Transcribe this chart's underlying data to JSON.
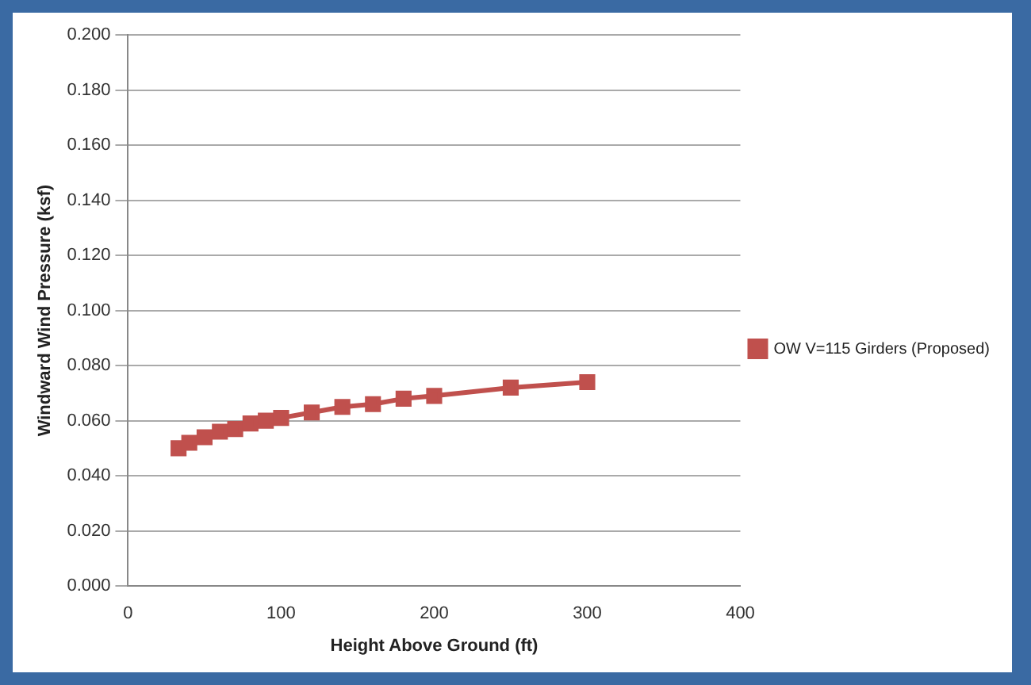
{
  "chart_data": {
    "type": "line",
    "xlabel": "Height Above Ground (ft)",
    "ylabel": "Windward Wind Pressure (ksf)",
    "x": [
      33,
      40,
      50,
      60,
      70,
      80,
      90,
      100,
      120,
      140,
      160,
      180,
      200,
      250,
      300
    ],
    "series": [
      {
        "name": "OW V=115 Girders (Proposed)",
        "color": "#c0504d",
        "values": [
          0.05,
          0.052,
          0.054,
          0.056,
          0.057,
          0.059,
          0.06,
          0.061,
          0.063,
          0.065,
          0.066,
          0.068,
          0.069,
          0.072,
          0.074
        ]
      }
    ],
    "xlim": [
      0,
      400
    ],
    "xticks": [
      0,
      100,
      200,
      300,
      400
    ],
    "ylim": [
      0,
      0.2
    ],
    "yticks": [
      {
        "value": 0,
        "label": "0.000"
      },
      {
        "value": 0.02,
        "label": "0.020"
      },
      {
        "value": 0.04,
        "label": "0.040"
      },
      {
        "value": 0.06,
        "label": "0.060"
      },
      {
        "value": 0.08,
        "label": "0.080"
      },
      {
        "value": 0.1,
        "label": "0.100"
      },
      {
        "value": 0.12,
        "label": "0.120"
      },
      {
        "value": 0.14,
        "label": "0.140"
      },
      {
        "value": 0.16,
        "label": "0.160"
      },
      {
        "value": 0.18,
        "label": "0.180"
      },
      {
        "value": 0.2,
        "label": "0.200"
      }
    ],
    "grid": "y",
    "legend": "right",
    "marker": "square",
    "line_style": "solid"
  }
}
